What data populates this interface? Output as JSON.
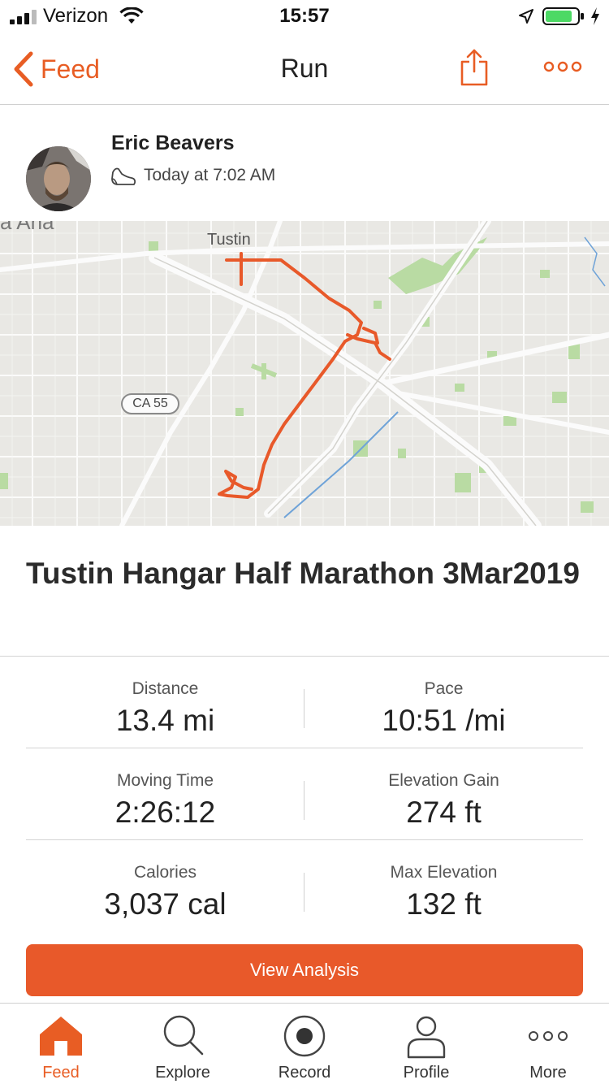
{
  "status_bar": {
    "carrier": "Verizon",
    "time": "15:57",
    "battery_color": "#4cd964"
  },
  "nav": {
    "back_label": "Feed",
    "title": "Run",
    "share_icon": "share-icon",
    "more_icon": "more-icon"
  },
  "athlete": {
    "name": "Eric Beavers",
    "time": "Today at 7:02 AM",
    "activity_icon": "shoe-icon"
  },
  "map": {
    "city_label": "Tustin",
    "edge_label": "a Ana",
    "highway_label": "CA 55",
    "route_color": "#e8592a"
  },
  "activity": {
    "title": "Tustin Hangar Half Marathon 3Mar2019"
  },
  "stats": [
    [
      {
        "label": "Distance",
        "value": "13.4 mi"
      },
      {
        "label": "Pace",
        "value": "10:51 /mi"
      }
    ],
    [
      {
        "label": "Moving Time",
        "value": "2:26:12"
      },
      {
        "label": "Elevation Gain",
        "value": "274 ft"
      }
    ],
    [
      {
        "label": "Calories",
        "value": "3,037 cal"
      },
      {
        "label": "Max Elevation",
        "value": "132 ft"
      }
    ]
  ],
  "view_analysis_label": "View Analysis",
  "accent_color": "#e8592a",
  "tabs": [
    {
      "label": "Feed",
      "icon": "home-icon",
      "active": true
    },
    {
      "label": "Explore",
      "icon": "search-icon",
      "active": false
    },
    {
      "label": "Record",
      "icon": "record-icon",
      "active": false
    },
    {
      "label": "Profile",
      "icon": "person-icon",
      "active": false
    },
    {
      "label": "More",
      "icon": "more-icon",
      "active": false
    }
  ]
}
